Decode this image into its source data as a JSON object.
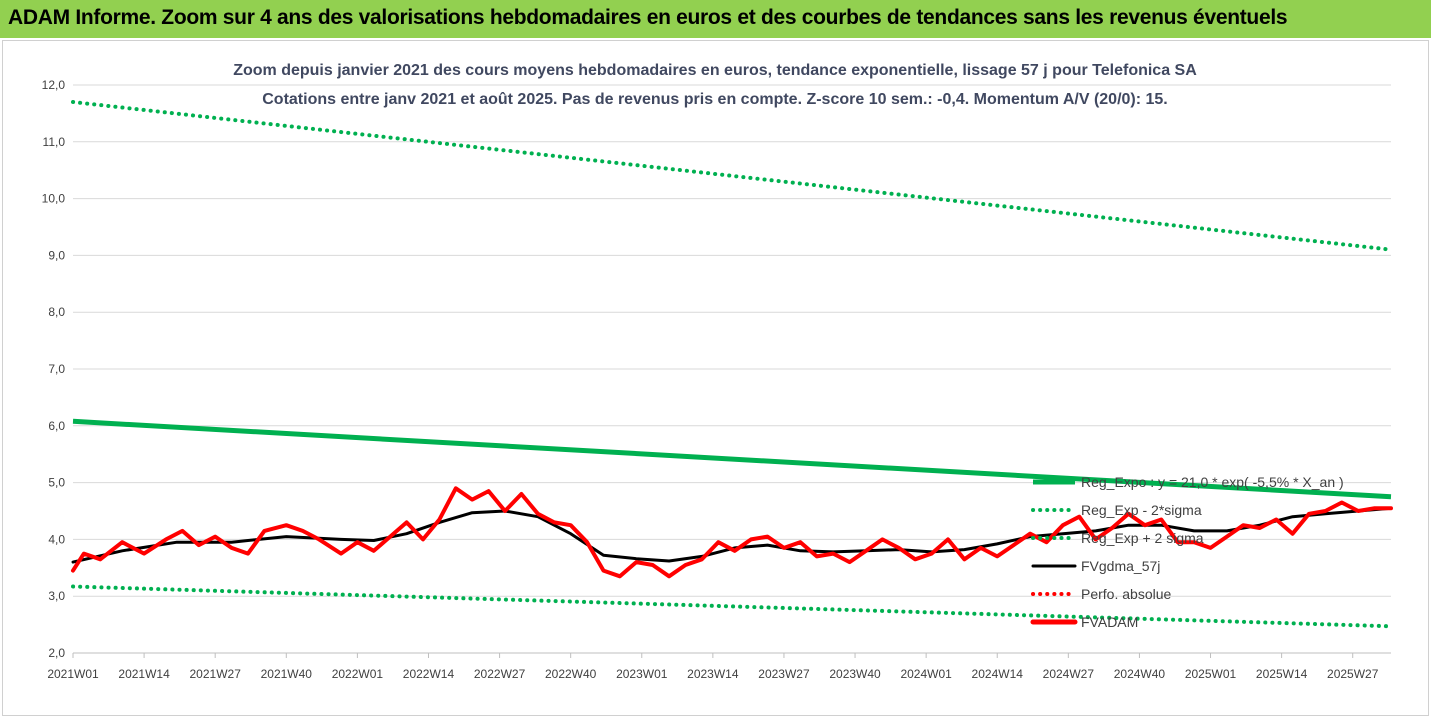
{
  "header": {
    "title": "ADAM Informe. Zoom sur 4 ans des valorisations hebdomadaires en euros et des courbes de tendances sans les revenus éventuels"
  },
  "colors": {
    "header_bg": "#92d050",
    "trend": "#00b050",
    "price": "#ff0000",
    "fvgdma": "#000000"
  },
  "chart_data": {
    "type": "line",
    "title": "Zoom depuis janvier 2021 des cours moyens hebdomadaires en euros, tendance exponentielle, lissage 57 j pour Telefonica SA",
    "subtitle": "Cotations entre janv 2021 et août 2025. Pas de revenus pris en compte. Z-score 10 sem.: -0,4. Momentum A/V (20/0): 15.",
    "xlabel": "",
    "ylabel": "",
    "ylim": [
      2.0,
      12.0
    ],
    "yticks": [
      "2,0",
      "3,0",
      "4,0",
      "5,0",
      "6,0",
      "7,0",
      "8,0",
      "9,0",
      "10,0",
      "11,0",
      "12,0"
    ],
    "grid": "horizontal",
    "legend_position": "right",
    "x_start_week": 1,
    "x_end_week": 242,
    "xticks": [
      "2021W01",
      "2021W14",
      "2021W27",
      "2021W40",
      "2022W01",
      "2022W14",
      "2022W27",
      "2022W40",
      "2023W01",
      "2023W14",
      "2023W27",
      "2023W40",
      "2024W01",
      "2024W14",
      "2024W27",
      "2024W40",
      "2025W01",
      "2025W14",
      "2025W27"
    ],
    "series": [
      {
        "name": "Reg_Expo : y = 21,0 * exp( -5,5% * X_an )",
        "style": "solid",
        "color": "#00b050",
        "x": [
          1,
          242
        ],
        "y": [
          6.08,
          4.75
        ]
      },
      {
        "name": "Reg_Exp - 2*sigma",
        "style": "dotted",
        "color": "#00b050",
        "x": [
          1,
          242
        ],
        "y": [
          3.17,
          2.47
        ]
      },
      {
        "name": "Reg_Exp + 2 sigma",
        "style": "dotted",
        "color": "#00b050",
        "x": [
          1,
          242
        ],
        "y": [
          11.7,
          9.1
        ]
      },
      {
        "name": "FVgdma_57j",
        "style": "solid",
        "color": "#000000",
        "x": [
          1,
          10,
          20,
          30,
          40,
          50,
          56,
          62,
          68,
          74,
          80,
          86,
          92,
          98,
          104,
          110,
          116,
          122,
          128,
          134,
          140,
          146,
          152,
          158,
          164,
          170,
          176,
          182,
          188,
          194,
          200,
          206,
          212,
          218,
          224,
          230,
          236,
          242
        ],
        "y": [
          3.6,
          3.8,
          3.95,
          3.95,
          4.05,
          4.0,
          3.98,
          4.1,
          4.3,
          4.47,
          4.5,
          4.4,
          4.1,
          3.72,
          3.66,
          3.62,
          3.7,
          3.85,
          3.9,
          3.8,
          3.78,
          3.8,
          3.82,
          3.78,
          3.82,
          3.92,
          4.05,
          4.1,
          4.15,
          4.25,
          4.25,
          4.15,
          4.15,
          4.25,
          4.4,
          4.45,
          4.5,
          4.55
        ]
      },
      {
        "name": "Perfo. absolue",
        "style": "dotted",
        "color": "#ff0000",
        "x": [],
        "y": []
      },
      {
        "name": "FVADAM",
        "style": "solid-thick",
        "color": "#ff0000",
        "x": [
          1,
          3,
          6,
          10,
          14,
          18,
          21,
          24,
          27,
          30,
          33,
          36,
          40,
          43,
          46,
          50,
          53,
          56,
          59,
          62,
          65,
          68,
          71,
          74,
          77,
          80,
          83,
          86,
          89,
          92,
          95,
          98,
          101,
          104,
          107,
          110,
          113,
          116,
          119,
          122,
          125,
          128,
          131,
          134,
          137,
          140,
          143,
          146,
          149,
          152,
          155,
          158,
          161,
          164,
          167,
          170,
          173,
          176,
          179,
          182,
          185,
          188,
          191,
          194,
          197,
          200,
          203,
          206,
          209,
          212,
          215,
          218,
          221,
          224,
          227,
          230,
          233,
          236,
          239,
          242
        ],
        "y": [
          3.45,
          3.75,
          3.65,
          3.95,
          3.75,
          4.0,
          4.15,
          3.9,
          4.05,
          3.85,
          3.75,
          4.15,
          4.25,
          4.15,
          4.0,
          3.75,
          3.95,
          3.8,
          4.05,
          4.3,
          4.0,
          4.35,
          4.9,
          4.7,
          4.85,
          4.5,
          4.8,
          4.45,
          4.3,
          4.25,
          3.95,
          3.45,
          3.35,
          3.6,
          3.55,
          3.35,
          3.55,
          3.65,
          3.95,
          3.8,
          4.0,
          4.05,
          3.85,
          3.95,
          3.7,
          3.75,
          3.6,
          3.8,
          4.0,
          3.85,
          3.65,
          3.75,
          4.0,
          3.65,
          3.85,
          3.7,
          3.9,
          4.1,
          3.95,
          4.25,
          4.4,
          4.0,
          4.2,
          4.45,
          4.25,
          4.35,
          3.95,
          3.95,
          3.85,
          4.05,
          4.25,
          4.2,
          4.35,
          4.1,
          4.45,
          4.5,
          4.65,
          4.5,
          4.55,
          4.55
        ]
      }
    ]
  }
}
